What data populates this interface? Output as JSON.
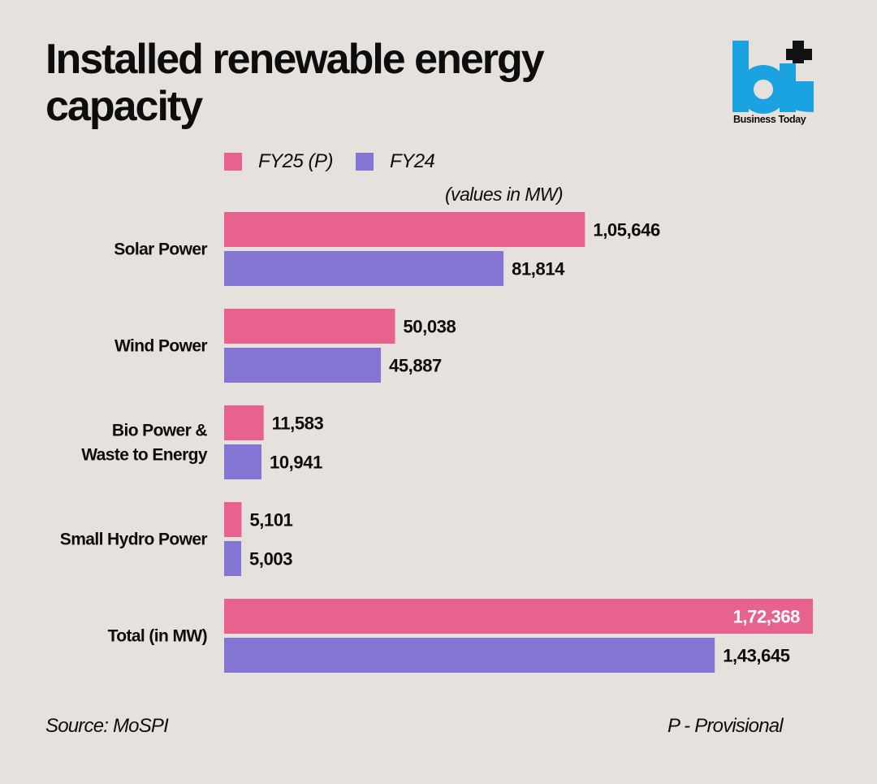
{
  "header": {
    "title": "Installed renewable energy capacity",
    "brand_name": "Business Today",
    "brand_logo": "bt-logo-icon"
  },
  "colors": {
    "background": "#E6E1DC",
    "fy25": "#E8628F",
    "fy24": "#8474D4",
    "logo_blue": "#1AA3E0",
    "text": "#0D0D0D"
  },
  "units_note": "(values in MW)",
  "footer": {
    "source": "Source: MoSPI",
    "note": "P - Provisional"
  },
  "chart_data": {
    "type": "bar",
    "orientation": "horizontal",
    "title": "Installed renewable energy capacity",
    "units": "MW",
    "xlabel": "",
    "ylabel": "",
    "grid": false,
    "legend_position": "top",
    "categories": [
      "Solar Power",
      "Wind Power",
      "Bio Power & Waste to Energy",
      "Small Hydro Power",
      "Total (in MW)"
    ],
    "category_lines": [
      [
        "Solar Power"
      ],
      [
        "Wind Power"
      ],
      [
        "Bio Power &",
        "Waste to Energy"
      ],
      [
        "Small Hydro Power"
      ],
      [
        "Total (in MW)"
      ]
    ],
    "series": [
      {
        "name": "FY25 (P)",
        "color": "#E8628F",
        "values": [
          105646,
          50038,
          11583,
          5101,
          172368
        ],
        "labels": [
          "1,05,646",
          "50,038",
          "11,583",
          "5,101",
          "1,72,368"
        ]
      },
      {
        "name": "FY24",
        "color": "#8474D4",
        "values": [
          81814,
          45887,
          10941,
          5003,
          143645
        ],
        "labels": [
          "81,814",
          "45,887",
          "10,941",
          "5,003",
          "1,43,645"
        ]
      }
    ],
    "xlim": [
      0,
      172368
    ]
  }
}
